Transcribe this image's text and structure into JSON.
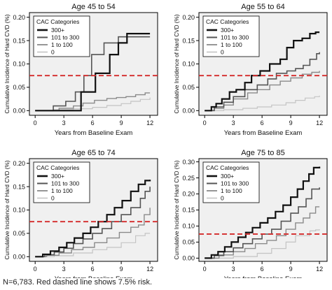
{
  "caption": "N=6,783. Red dashed line shows 7.5% risk.",
  "colors": {
    "300+": "#111111",
    "101 to 300": "#555555",
    "1 to 100": "#8a8a8a",
    "0": "#c4c4c4",
    "risk_line": "#d42a2a",
    "panel_bg": "#f0f0f0"
  },
  "chart_data": [
    {
      "type": "line",
      "subtype": "step",
      "title": "Age 45 to 54",
      "xlabel": "Years from Baseline Exam",
      "ylabel": "Cumulative Incidence of Hard CVD (%)",
      "xlim": [
        -0.6,
        12.8
      ],
      "ylim": [
        -0.01,
        0.21
      ],
      "xticks": [
        "0",
        "3",
        "6",
        "9",
        "12"
      ],
      "yticks": [
        "0.00",
        "0.05",
        "0.10",
        "0.15",
        "0.20"
      ],
      "reference_line": {
        "y": 0.075,
        "style": "dashed",
        "label": "7.5% risk"
      },
      "legend": {
        "title": "CAC Categories",
        "position": "top-left",
        "entries": [
          "300+",
          "101 to 300",
          "1 to 100",
          "0"
        ]
      },
      "series": [
        {
          "name": "300+",
          "x": [
            0,
            4.8,
            4.8,
            6.3,
            6.3,
            7.8,
            7.8,
            8.7,
            8.7,
            9.6,
            9.6,
            12
          ],
          "y": [
            0,
            0,
            0.04,
            0.04,
            0.08,
            0.08,
            0.12,
            0.12,
            0.145,
            0.145,
            0.165,
            0.165
          ]
        },
        {
          "name": "101 to 300",
          "x": [
            0,
            1.9,
            1.9,
            3.2,
            3.2,
            4.2,
            4.2,
            5.1,
            5.1,
            5.9,
            5.9,
            7.2,
            7.2,
            8.7,
            8.7,
            12
          ],
          "y": [
            0,
            0,
            0.01,
            0.01,
            0.02,
            0.02,
            0.04,
            0.04,
            0.075,
            0.075,
            0.12,
            0.12,
            0.145,
            0.145,
            0.158,
            0.158
          ]
        },
        {
          "name": "1 to 100",
          "x": [
            0,
            2.5,
            4.0,
            5.0,
            6.2,
            7.5,
            8.5,
            9.5,
            10.5,
            11.5,
            12
          ],
          "y": [
            0,
            0.005,
            0.01,
            0.016,
            0.022,
            0.026,
            0.028,
            0.03,
            0.034,
            0.038,
            0.038
          ]
        },
        {
          "name": "0",
          "x": [
            0,
            2,
            4,
            6,
            7.5,
            9,
            10,
            11,
            12
          ],
          "y": [
            0,
            0.002,
            0.004,
            0.007,
            0.011,
            0.015,
            0.02,
            0.024,
            0.028
          ]
        }
      ]
    },
    {
      "type": "line",
      "subtype": "step",
      "title": "Age 55 to 64",
      "xlabel": "Years from Baseline Exam",
      "ylabel": "Cumulative Incidence of Hard CVD (%)",
      "xlim": [
        -0.6,
        12.8
      ],
      "ylim": [
        -0.01,
        0.21
      ],
      "xticks": [
        "0",
        "3",
        "6",
        "9",
        "12"
      ],
      "yticks": [
        "0.00",
        "0.05",
        "0.10",
        "0.15",
        "0.20"
      ],
      "reference_line": {
        "y": 0.075,
        "style": "dashed",
        "label": "7.5% risk"
      },
      "legend": {
        "title": "CAC Categories",
        "position": "top-left",
        "entries": [
          "300+",
          "101 to 300",
          "1 to 100",
          "0"
        ]
      },
      "series": [
        {
          "name": "300+",
          "x": [
            0,
            0.7,
            1.2,
            1.8,
            2.6,
            3.3,
            4.2,
            4.9,
            5.8,
            6.8,
            7.9,
            8.6,
            9.3,
            10.2,
            11.0,
            11.6,
            12
          ],
          "y": [
            0,
            0.008,
            0.015,
            0.025,
            0.04,
            0.045,
            0.06,
            0.075,
            0.085,
            0.1,
            0.11,
            0.135,
            0.15,
            0.155,
            0.165,
            0.168,
            0.168
          ]
        },
        {
          "name": "101 to 300",
          "x": [
            0,
            1.0,
            2.0,
            3.0,
            4.2,
            5.5,
            6.6,
            7.5,
            8.6,
            9.5,
            10.3,
            11.0,
            11.7,
            12
          ],
          "y": [
            0,
            0.008,
            0.018,
            0.03,
            0.045,
            0.055,
            0.068,
            0.08,
            0.085,
            0.09,
            0.097,
            0.11,
            0.122,
            0.125
          ]
        },
        {
          "name": "1 to 100",
          "x": [
            0,
            1.0,
            2.0,
            3.0,
            4.5,
            5.5,
            6.8,
            7.9,
            9.0,
            10.2,
            11.2,
            12
          ],
          "y": [
            0,
            0.005,
            0.012,
            0.025,
            0.038,
            0.045,
            0.055,
            0.063,
            0.07,
            0.078,
            0.082,
            0.085
          ]
        },
        {
          "name": "0",
          "x": [
            0,
            2,
            4,
            5.5,
            7,
            8.5,
            9.5,
            10.5,
            11.5,
            12
          ],
          "y": [
            0,
            0.002,
            0.005,
            0.008,
            0.012,
            0.017,
            0.022,
            0.027,
            0.03,
            0.032
          ]
        }
      ]
    },
    {
      "type": "line",
      "subtype": "step",
      "title": "Age 65 to 74",
      "xlabel": "Years from Baseline Exam",
      "ylabel": "Cumulative Incidence of Hard CVD (%)",
      "xlim": [
        -0.6,
        12.8
      ],
      "ylim": [
        -0.01,
        0.21
      ],
      "xticks": [
        "0",
        "3",
        "6",
        "9",
        "12"
      ],
      "yticks": [
        "0.00",
        "0.05",
        "0.10",
        "0.15",
        "0.20"
      ],
      "reference_line": {
        "y": 0.075,
        "style": "dashed",
        "label": "7.5% risk"
      },
      "legend": {
        "title": "CAC Categories",
        "position": "top-left",
        "entries": [
          "300+",
          "101 to 300",
          "1 to 100",
          "0"
        ]
      },
      "series": [
        {
          "name": "300+",
          "x": [
            0,
            0.8,
            1.6,
            2.5,
            3.3,
            4.1,
            5.0,
            5.8,
            6.6,
            7.5,
            8.3,
            9.1,
            10.0,
            10.8,
            11.5,
            12
          ],
          "y": [
            0,
            0.005,
            0.012,
            0.02,
            0.03,
            0.04,
            0.05,
            0.063,
            0.075,
            0.09,
            0.105,
            0.12,
            0.14,
            0.155,
            0.163,
            0.165
          ]
        },
        {
          "name": "101 to 300",
          "x": [
            0,
            1.0,
            2.0,
            3.0,
            4.0,
            5.0,
            6.0,
            7.0,
            8.0,
            9.0,
            10.0,
            11.0,
            11.5,
            12
          ],
          "y": [
            0,
            0.004,
            0.01,
            0.018,
            0.028,
            0.038,
            0.05,
            0.06,
            0.075,
            0.09,
            0.105,
            0.125,
            0.14,
            0.15
          ]
        },
        {
          "name": "1 to 100",
          "x": [
            0,
            1.2,
            2.5,
            3.8,
            5.0,
            6.2,
            7.5,
            8.8,
            10.0,
            10.8,
            11.4,
            12
          ],
          "y": [
            0,
            0.003,
            0.008,
            0.015,
            0.02,
            0.03,
            0.04,
            0.052,
            0.063,
            0.068,
            0.09,
            0.105
          ]
        },
        {
          "name": "0",
          "x": [
            0,
            2,
            4,
            6,
            7.5,
            9,
            10.5,
            11.5,
            12
          ],
          "y": [
            0,
            0.002,
            0.008,
            0.015,
            0.02,
            0.03,
            0.045,
            0.05,
            0.05
          ]
        }
      ]
    },
    {
      "type": "line",
      "subtype": "step",
      "title": "Age 75 to 85",
      "xlabel": "Years from Baseline Exam",
      "ylabel": "Cumulative Incidence of Hard CVD (%)",
      "xlim": [
        -0.6,
        12.8
      ],
      "ylim": [
        -0.01,
        0.31
      ],
      "xticks": [
        "0",
        "3",
        "6",
        "9",
        "12"
      ],
      "yticks": [
        "0.00",
        "0.05",
        "0.10",
        "0.15",
        "0.20",
        "0.25",
        "0.30"
      ],
      "reference_line": {
        "y": 0.075,
        "style": "dashed",
        "label": "7.5% risk"
      },
      "legend": {
        "title": "CAC Categories",
        "position": "top-left",
        "entries": [
          "300+",
          "101 to 300",
          "1 to 100",
          "0"
        ]
      },
      "series": [
        {
          "name": "300+",
          "x": [
            0,
            0.7,
            1.4,
            2.1,
            2.8,
            3.5,
            4.3,
            5.0,
            5.8,
            6.6,
            7.4,
            8.2,
            9.0,
            9.7,
            10.3,
            10.9,
            11.4,
            12
          ],
          "y": [
            0,
            0.01,
            0.02,
            0.035,
            0.05,
            0.065,
            0.08,
            0.095,
            0.11,
            0.125,
            0.145,
            0.165,
            0.19,
            0.215,
            0.24,
            0.262,
            0.282,
            0.285
          ]
        },
        {
          "name": "101 to 300",
          "x": [
            0,
            1.0,
            2.0,
            3.0,
            4.0,
            5.0,
            6.0,
            7.0,
            8.0,
            9.0,
            9.8,
            10.6,
            11.2,
            12
          ],
          "y": [
            0,
            0.008,
            0.02,
            0.032,
            0.045,
            0.06,
            0.075,
            0.09,
            0.115,
            0.14,
            0.16,
            0.185,
            0.215,
            0.22
          ]
        },
        {
          "name": "1 to 100",
          "x": [
            0,
            1.5,
            3.0,
            4.2,
            5.3,
            6.5,
            7.5,
            8.5,
            9.5,
            10.3,
            11.0,
            11.6,
            12
          ],
          "y": [
            0,
            0.01,
            0.02,
            0.03,
            0.045,
            0.055,
            0.07,
            0.09,
            0.11,
            0.125,
            0.14,
            0.16,
            0.16
          ]
        },
        {
          "name": "0",
          "x": [
            0,
            3.0,
            5.5,
            7.0,
            8.5,
            9.5,
            10.5,
            11.0,
            11.6,
            12
          ],
          "y": [
            0,
            0.005,
            0.015,
            0.03,
            0.05,
            0.07,
            0.07,
            0.085,
            0.088,
            0.09
          ]
        }
      ]
    }
  ]
}
